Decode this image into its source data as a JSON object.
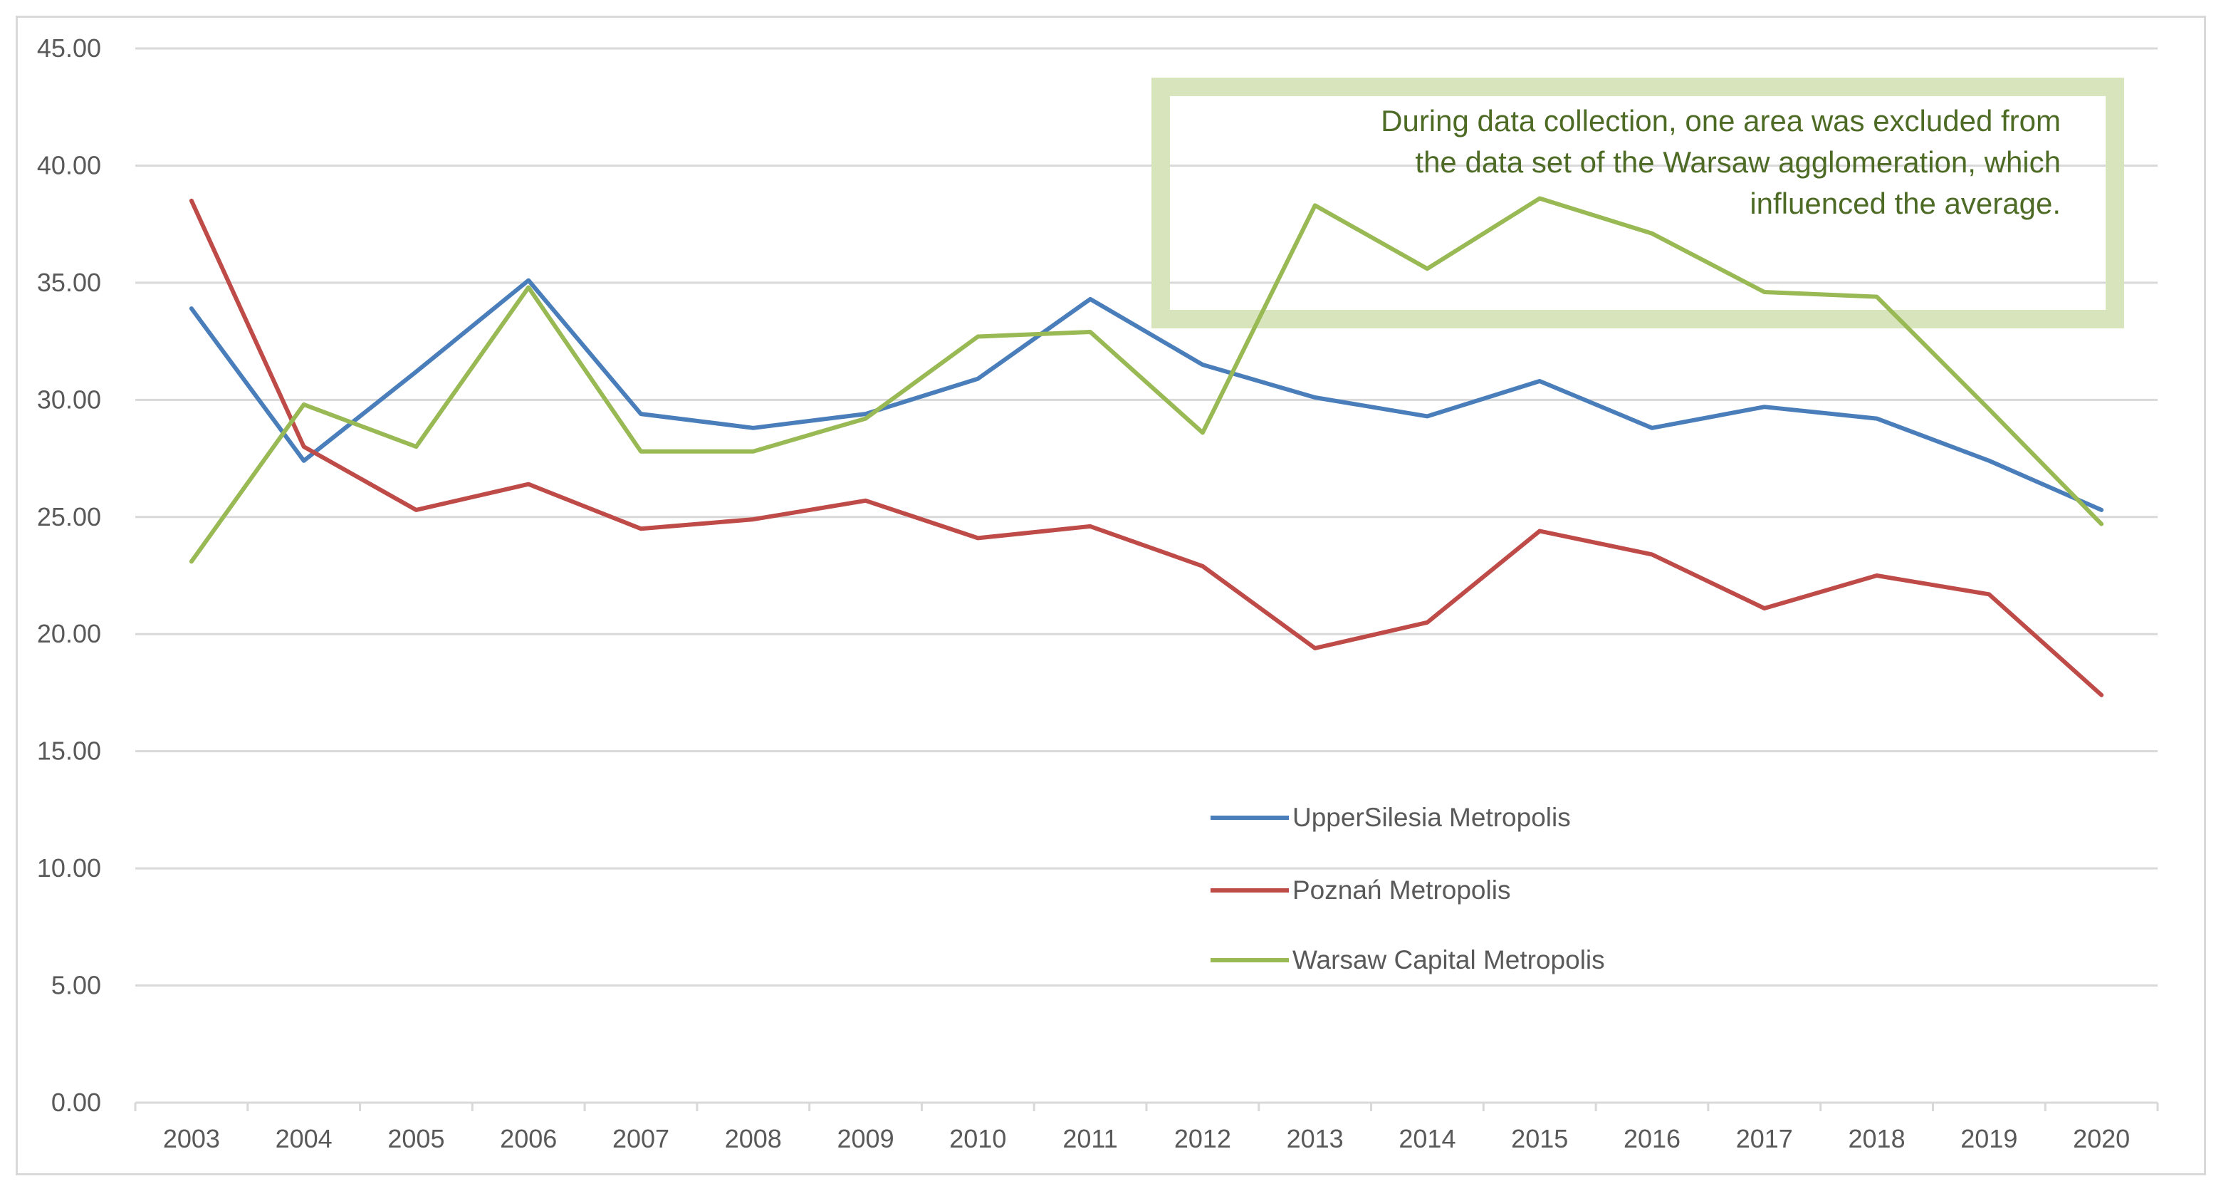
{
  "chart_data": {
    "type": "line",
    "title": "",
    "xlabel": "",
    "ylabel": "",
    "ylim": [
      0,
      45
    ],
    "yticks": [
      0,
      5,
      10,
      15,
      20,
      25,
      30,
      35,
      40,
      45
    ],
    "ytick_labels": [
      "0.00",
      "5.00",
      "10.00",
      "15.00",
      "20.00",
      "25.00",
      "30.00",
      "35.00",
      "40.00",
      "45.00"
    ],
    "grid": true,
    "legend_position": "center-right",
    "categories": [
      "2003",
      "2004",
      "2005",
      "2006",
      "2007",
      "2008",
      "2009",
      "2010",
      "2011",
      "2012",
      "2013",
      "2014",
      "2015",
      "2016",
      "2017",
      "2018",
      "2019",
      "2020"
    ],
    "series": [
      {
        "name": "UpperSilesia Metropolis",
        "color": "#4a7ebb",
        "values": [
          33.9,
          27.4,
          31.2,
          35.1,
          29.4,
          28.8,
          29.4,
          30.9,
          34.3,
          31.5,
          30.1,
          29.3,
          30.8,
          28.8,
          29.7,
          29.2,
          27.4,
          25.3
        ]
      },
      {
        "name": "Poznań Metropolis",
        "color": "#be4b48",
        "values": [
          38.5,
          28.0,
          25.3,
          26.4,
          24.5,
          24.9,
          25.7,
          24.1,
          24.6,
          22.9,
          19.4,
          20.5,
          24.4,
          23.4,
          21.1,
          22.5,
          21.7,
          17.4
        ]
      },
      {
        "name": "Warsaw Capital Metropolis",
        "color": "#98b954",
        "values": [
          23.1,
          29.8,
          28.0,
          34.8,
          27.8,
          27.8,
          29.2,
          32.7,
          32.9,
          28.6,
          38.3,
          35.6,
          38.6,
          37.1,
          34.6,
          34.4,
          29.6,
          24.7
        ]
      }
    ],
    "annotation": {
      "lines": [
        "During data collection, one area was excluded from",
        "the data set of the Warsaw agglomeration, which",
        "influenced the average."
      ],
      "text_color": "#4e6b26",
      "border_color": "#d8e4bc"
    },
    "axis_color": "#d9d9d9",
    "grid_color": "#d9d9d9"
  }
}
